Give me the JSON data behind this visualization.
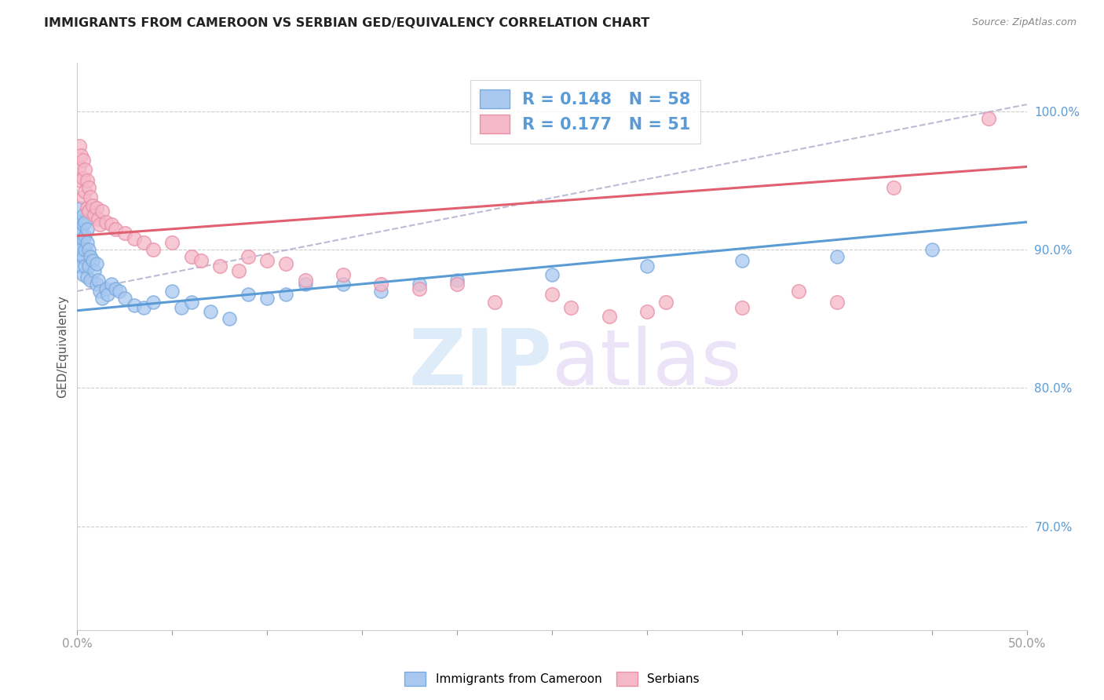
{
  "title": "IMMIGRANTS FROM CAMEROON VS SERBIAN GED/EQUIVALENCY CORRELATION CHART",
  "source": "Source: ZipAtlas.com",
  "ylabel": "GED/Equivalency",
  "legend_blue_r": "0.148",
  "legend_blue_n": "58",
  "legend_pink_r": "0.177",
  "legend_pink_n": "51",
  "legend_label_blue": "Immigrants from Cameroon",
  "legend_label_pink": "Serbians",
  "blue_color": "#A8C8F0",
  "pink_color": "#F5B8C8",
  "blue_edge_color": "#7AAADE",
  "pink_edge_color": "#E890A8",
  "trend_blue_color": "#5B9BD5",
  "trend_pink_color": "#E06070",
  "watermark_color": "#C8DFF5",
  "xlim": [
    0.0,
    0.5
  ],
  "ylim": [
    0.625,
    1.035
  ],
  "blue_trend": [
    0.856,
    0.92
  ],
  "pink_trend": [
    0.91,
    0.96
  ],
  "blue_points_x": [
    0.001,
    0.001,
    0.001,
    0.001,
    0.002,
    0.002,
    0.002,
    0.002,
    0.003,
    0.003,
    0.003,
    0.003,
    0.003,
    0.004,
    0.004,
    0.004,
    0.004,
    0.005,
    0.005,
    0.005,
    0.006,
    0.006,
    0.007,
    0.007,
    0.008,
    0.009,
    0.01,
    0.01,
    0.011,
    0.012,
    0.013,
    0.015,
    0.016,
    0.018,
    0.02,
    0.022,
    0.025,
    0.03,
    0.035,
    0.04,
    0.05,
    0.055,
    0.06,
    0.07,
    0.08,
    0.09,
    0.1,
    0.11,
    0.12,
    0.14,
    0.16,
    0.18,
    0.2,
    0.25,
    0.3,
    0.35,
    0.4,
    0.45
  ],
  "blue_points_y": [
    0.92,
    0.915,
    0.905,
    0.895,
    0.93,
    0.912,
    0.9,
    0.888,
    0.925,
    0.918,
    0.908,
    0.895,
    0.882,
    0.92,
    0.91,
    0.9,
    0.888,
    0.915,
    0.905,
    0.88,
    0.9,
    0.888,
    0.895,
    0.878,
    0.892,
    0.885,
    0.89,
    0.875,
    0.878,
    0.87,
    0.865,
    0.872,
    0.868,
    0.875,
    0.872,
    0.87,
    0.865,
    0.86,
    0.858,
    0.862,
    0.87,
    0.858,
    0.862,
    0.855,
    0.85,
    0.868,
    0.865,
    0.868,
    0.875,
    0.875,
    0.87,
    0.875,
    0.878,
    0.882,
    0.888,
    0.892,
    0.895,
    0.9
  ],
  "pink_points_x": [
    0.001,
    0.001,
    0.002,
    0.002,
    0.003,
    0.003,
    0.003,
    0.004,
    0.004,
    0.005,
    0.005,
    0.006,
    0.006,
    0.007,
    0.008,
    0.009,
    0.01,
    0.011,
    0.012,
    0.013,
    0.015,
    0.018,
    0.02,
    0.025,
    0.03,
    0.035,
    0.04,
    0.05,
    0.06,
    0.065,
    0.075,
    0.085,
    0.09,
    0.1,
    0.11,
    0.12,
    0.14,
    0.16,
    0.18,
    0.2,
    0.22,
    0.25,
    0.26,
    0.28,
    0.3,
    0.31,
    0.35,
    0.38,
    0.4,
    0.43,
    0.48
  ],
  "pink_points_y": [
    0.975,
    0.96,
    0.968,
    0.95,
    0.965,
    0.952,
    0.938,
    0.958,
    0.942,
    0.95,
    0.93,
    0.945,
    0.928,
    0.938,
    0.932,
    0.925,
    0.93,
    0.922,
    0.918,
    0.928,
    0.92,
    0.918,
    0.915,
    0.912,
    0.908,
    0.905,
    0.9,
    0.905,
    0.895,
    0.892,
    0.888,
    0.885,
    0.895,
    0.892,
    0.89,
    0.878,
    0.882,
    0.875,
    0.872,
    0.875,
    0.862,
    0.868,
    0.858,
    0.852,
    0.855,
    0.862,
    0.858,
    0.87,
    0.862,
    0.945,
    0.995
  ],
  "xtick_positions": [
    0.0,
    0.05,
    0.1,
    0.15,
    0.2,
    0.25,
    0.3,
    0.35,
    0.4,
    0.45,
    0.5
  ],
  "ytick_right": [
    0.7,
    0.8,
    0.9,
    1.0
  ]
}
